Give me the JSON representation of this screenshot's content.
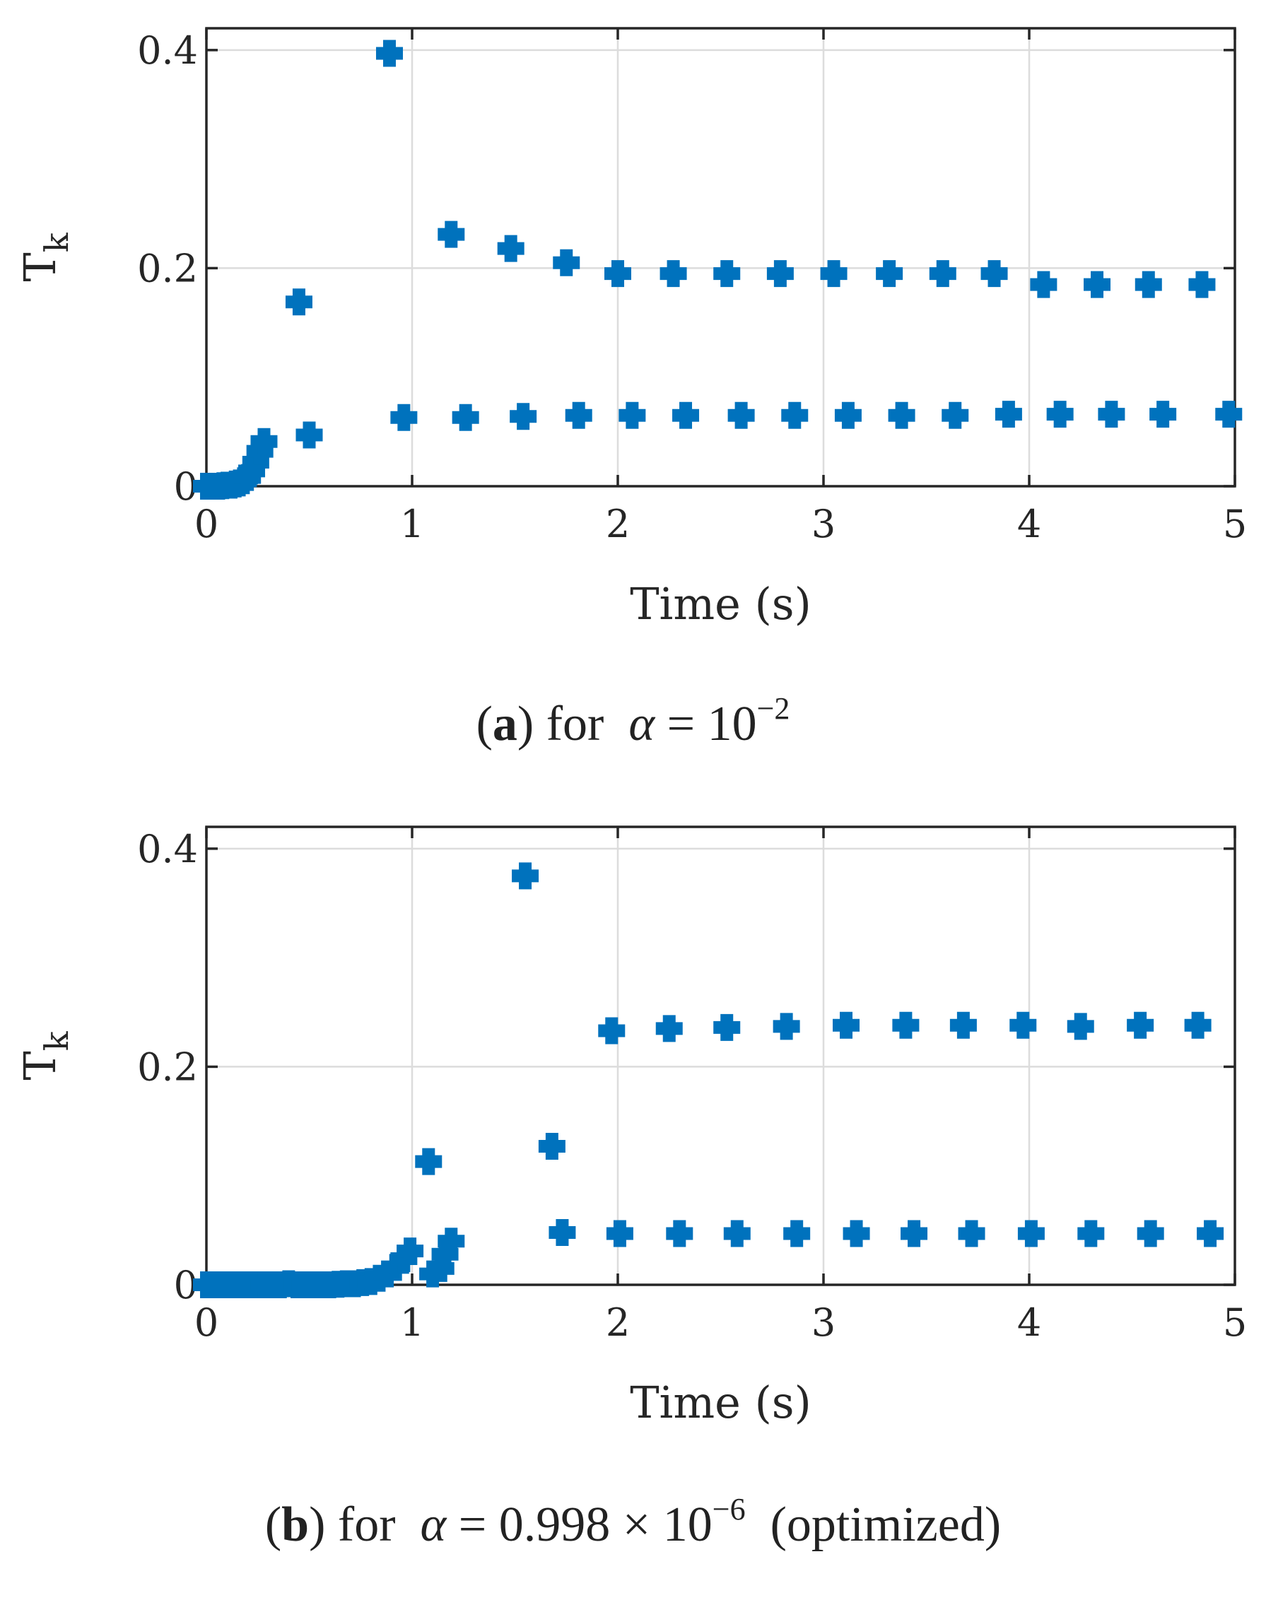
{
  "figures": [
    {
      "caption": {
        "panel_open": "(",
        "panel_letter": "a",
        "panel_close": ")",
        "prefix": "for",
        "symbol": "α",
        "equals": "=",
        "value_base": "10",
        "value_exp": "−2",
        "suffix": ""
      }
    },
    {
      "caption": {
        "panel_open": "(",
        "panel_letter": "b",
        "panel_close": ")",
        "prefix": "for",
        "symbol": "α",
        "equals": "=",
        "value_base": "0.998 × 10",
        "value_exp": "−6",
        "suffix": "(optimized)"
      }
    }
  ],
  "chart_data": [
    {
      "type": "scatter",
      "title": "",
      "xlabel": "Time (s)",
      "ylabel": "T",
      "ylabel_subscript": "k",
      "xlim": [
        0,
        5
      ],
      "ylim": [
        0,
        0.42
      ],
      "xticks": [
        0,
        1,
        2,
        3,
        4,
        5
      ],
      "xtick_labels": [
        "0",
        "1",
        "2",
        "3",
        "4",
        "5"
      ],
      "yticks": [
        0,
        0.2,
        0.4
      ],
      "ytick_labels": [
        "0",
        "0.2",
        "0.4"
      ],
      "grid": true,
      "marker_color": "#0072bd",
      "series": [
        {
          "marker": "plus",
          "points": [
            [
              0.0,
              0.0
            ],
            [
              0.02,
              0.0
            ],
            [
              0.04,
              0.0
            ],
            [
              0.06,
              0.0
            ],
            [
              0.08,
              0.0005
            ],
            [
              0.1,
              0.001
            ],
            [
              0.12,
              0.001
            ],
            [
              0.14,
              0.002
            ],
            [
              0.16,
              0.003
            ],
            [
              0.18,
              0.005
            ],
            [
              0.2,
              0.008
            ],
            [
              0.22,
              0.014
            ],
            [
              0.24,
              0.022
            ],
            [
              0.26,
              0.032
            ],
            [
              0.28,
              0.041
            ],
            [
              0.45,
              0.169
            ],
            [
              0.5,
              0.047
            ],
            [
              0.89,
              0.397
            ],
            [
              0.96,
              0.063
            ],
            [
              1.19,
              0.231
            ],
            [
              1.26,
              0.063
            ],
            [
              1.48,
              0.218
            ],
            [
              1.54,
              0.064
            ],
            [
              1.75,
              0.205
            ],
            [
              1.81,
              0.065
            ],
            [
              2.0,
              0.195
            ],
            [
              2.07,
              0.065
            ],
            [
              2.27,
              0.195
            ],
            [
              2.33,
              0.065
            ],
            [
              2.53,
              0.195
            ],
            [
              2.6,
              0.065
            ],
            [
              2.79,
              0.195
            ],
            [
              2.86,
              0.065
            ],
            [
              3.05,
              0.195
            ],
            [
              3.12,
              0.065
            ],
            [
              3.32,
              0.195
            ],
            [
              3.38,
              0.065
            ],
            [
              3.58,
              0.195
            ],
            [
              3.64,
              0.065
            ],
            [
              3.83,
              0.195
            ],
            [
              3.9,
              0.066
            ],
            [
              4.07,
              0.185
            ],
            [
              4.15,
              0.066
            ],
            [
              4.33,
              0.185
            ],
            [
              4.4,
              0.066
            ],
            [
              4.58,
              0.185
            ],
            [
              4.65,
              0.066
            ],
            [
              4.84,
              0.185
            ],
            [
              4.97,
              0.066
            ]
          ]
        }
      ]
    },
    {
      "type": "scatter",
      "title": "",
      "xlabel": "Time (s)",
      "ylabel": "T",
      "ylabel_subscript": "k",
      "xlim": [
        0,
        5
      ],
      "ylim": [
        0,
        0.42
      ],
      "xticks": [
        0,
        1,
        2,
        3,
        4,
        5
      ],
      "xtick_labels": [
        "0",
        "1",
        "2",
        "3",
        "4",
        "5"
      ],
      "yticks": [
        0,
        0.2,
        0.4
      ],
      "ytick_labels": [
        "0",
        "0.2",
        "0.4"
      ],
      "grid": true,
      "marker_color": "#0072bd",
      "series": [
        {
          "marker": "plus",
          "points": [
            [
              0.0,
              0.0
            ],
            [
              0.04,
              0.0
            ],
            [
              0.08,
              0.0
            ],
            [
              0.12,
              0.0
            ],
            [
              0.16,
              0.0
            ],
            [
              0.2,
              0.0
            ],
            [
              0.24,
              0.0
            ],
            [
              0.28,
              0.0
            ],
            [
              0.32,
              0.0
            ],
            [
              0.36,
              0.0
            ],
            [
              0.4,
              0.001
            ],
            [
              0.44,
              0.0
            ],
            [
              0.48,
              0.0
            ],
            [
              0.52,
              0.0
            ],
            [
              0.56,
              0.0
            ],
            [
              0.6,
              0.0
            ],
            [
              0.64,
              0.0005
            ],
            [
              0.68,
              0.001
            ],
            [
              0.72,
              0.001
            ],
            [
              0.76,
              0.002
            ],
            [
              0.8,
              0.003
            ],
            [
              0.84,
              0.006
            ],
            [
              0.88,
              0.01
            ],
            [
              0.92,
              0.016
            ],
            [
              0.96,
              0.024
            ],
            [
              0.99,
              0.031
            ],
            [
              1.08,
              0.113
            ],
            [
              1.1,
              0.01
            ],
            [
              1.14,
              0.015
            ],
            [
              1.16,
              0.028
            ],
            [
              1.19,
              0.04
            ],
            [
              1.55,
              0.375
            ],
            [
              1.68,
              0.127
            ],
            [
              1.73,
              0.048
            ],
            [
              1.97,
              0.233
            ],
            [
              2.01,
              0.047
            ],
            [
              2.25,
              0.235
            ],
            [
              2.3,
              0.047
            ],
            [
              2.53,
              0.236
            ],
            [
              2.58,
              0.047
            ],
            [
              2.82,
              0.237
            ],
            [
              2.87,
              0.047
            ],
            [
              3.11,
              0.238
            ],
            [
              3.16,
              0.047
            ],
            [
              3.4,
              0.238
            ],
            [
              3.44,
              0.047
            ],
            [
              3.68,
              0.238
            ],
            [
              3.72,
              0.047
            ],
            [
              3.97,
              0.238
            ],
            [
              4.01,
              0.047
            ],
            [
              4.25,
              0.237
            ],
            [
              4.3,
              0.047
            ],
            [
              4.54,
              0.238
            ],
            [
              4.59,
              0.047
            ],
            [
              4.82,
              0.238
            ],
            [
              4.88,
              0.047
            ]
          ]
        }
      ]
    }
  ]
}
